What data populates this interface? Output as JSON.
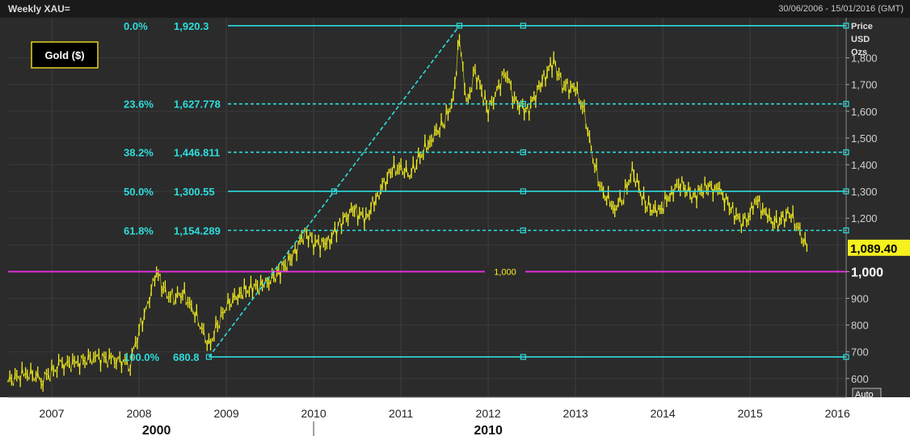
{
  "header": {
    "title": "Weekly XAU=",
    "date_range": "30/06/2006 - 15/01/2016 (GMT)"
  },
  "legend": {
    "label": "Gold ($)"
  },
  "axis": {
    "unit_lines": [
      "Price",
      "USD",
      "Ozs"
    ],
    "auto_label": "Auto"
  },
  "colors": {
    "fib": "#2fdcdc",
    "price": "#f5f01e",
    "threshold": "#e82ee2",
    "background": "#2b2b2b"
  },
  "chart_data": {
    "type": "line",
    "ylim": [
      530,
      1950
    ],
    "xlim": [
      2006.5,
      2016.1
    ],
    "yticks": [
      600,
      700,
      800,
      900,
      1000,
      1100,
      1200,
      1300,
      1400,
      1500,
      1600,
      1700,
      1800
    ],
    "ytick_labels": [
      "600",
      "700",
      "800",
      "900",
      "1,000",
      "",
      "1,200",
      "1,300",
      "1,400",
      "1,500",
      "1,600",
      "1,700",
      "1,800"
    ],
    "xticks": [
      2007,
      2008,
      2009,
      2010,
      2011,
      2012,
      2013,
      2014,
      2015,
      2016
    ],
    "xtick_labels": [
      "2007",
      "2008",
      "2009",
      "2010",
      "2011",
      "2012",
      "2013",
      "2014",
      "2015",
      "2016"
    ],
    "decades": [
      {
        "x": 2008.2,
        "label": "2000"
      },
      {
        "x": 2012.0,
        "label": "2010"
      }
    ],
    "fib_levels": [
      {
        "pct": "0.0%",
        "value": 1920.3,
        "value_label": "1,920.3",
        "dashed": false
      },
      {
        "pct": "23.6%",
        "value": 1627.778,
        "value_label": "1,627.778",
        "dashed": true
      },
      {
        "pct": "38.2%",
        "value": 1446.811,
        "value_label": "1,446.811",
        "dashed": true
      },
      {
        "pct": "50.0%",
        "value": 1300.55,
        "value_label": "1,300.55",
        "dashed": false
      },
      {
        "pct": "61.8%",
        "value": 1154.289,
        "value_label": "1,154.289",
        "dashed": true
      },
      {
        "pct": "100.0%",
        "value": 680.8,
        "value_label": "680.8",
        "dashed": false
      }
    ],
    "trendline": {
      "from": {
        "x": 2008.8,
        "y": 680.8
      },
      "to": {
        "x": 2011.67,
        "y": 1920.3
      }
    },
    "hline": {
      "value": 1000,
      "label": "1,000"
    },
    "last_price": {
      "value": 1089.4,
      "label": "1,089.40"
    },
    "series": [
      {
        "x": [
          2006.5,
          2006.7,
          2006.9,
          2007.1,
          2007.3,
          2007.5,
          2007.7,
          2007.9,
          2008.0,
          2008.1,
          2008.2,
          2008.3,
          2008.4,
          2008.5,
          2008.6,
          2008.7,
          2008.8,
          2008.9,
          2009.0,
          2009.15,
          2009.3,
          2009.45,
          2009.6,
          2009.75,
          2009.9,
          2010.0,
          2010.15,
          2010.3,
          2010.45,
          2010.6,
          2010.75,
          2010.9,
          2011.0,
          2011.1,
          2011.2,
          2011.35,
          2011.5,
          2011.6,
          2011.67,
          2011.75,
          2011.85,
          2012.0,
          2012.1,
          2012.2,
          2012.3,
          2012.45,
          2012.6,
          2012.75,
          2012.85,
          2013.0,
          2013.1,
          2013.2,
          2013.3,
          2013.45,
          2013.55,
          2013.65,
          2013.8,
          2013.95,
          2014.1,
          2014.2,
          2014.35,
          2014.5,
          2014.65,
          2014.8,
          2014.9,
          2015.0,
          2015.05,
          2015.2,
          2015.3,
          2015.45,
          2015.55,
          2015.65
        ],
        "y": [
          590,
          620,
          600,
          650,
          660,
          680,
          670,
          660,
          780,
          880,
          1000,
          920,
          900,
          920,
          870,
          800,
          720,
          800,
          870,
          920,
          940,
          950,
          1000,
          1050,
          1150,
          1110,
          1100,
          1180,
          1230,
          1200,
          1300,
          1380,
          1390,
          1360,
          1420,
          1500,
          1560,
          1650,
          1880,
          1620,
          1750,
          1600,
          1680,
          1750,
          1640,
          1600,
          1700,
          1790,
          1700,
          1680,
          1600,
          1420,
          1300,
          1240,
          1280,
          1380,
          1250,
          1220,
          1300,
          1330,
          1280,
          1320,
          1300,
          1230,
          1180,
          1210,
          1280,
          1200,
          1180,
          1220,
          1160,
          1089.4
        ]
      }
    ]
  }
}
